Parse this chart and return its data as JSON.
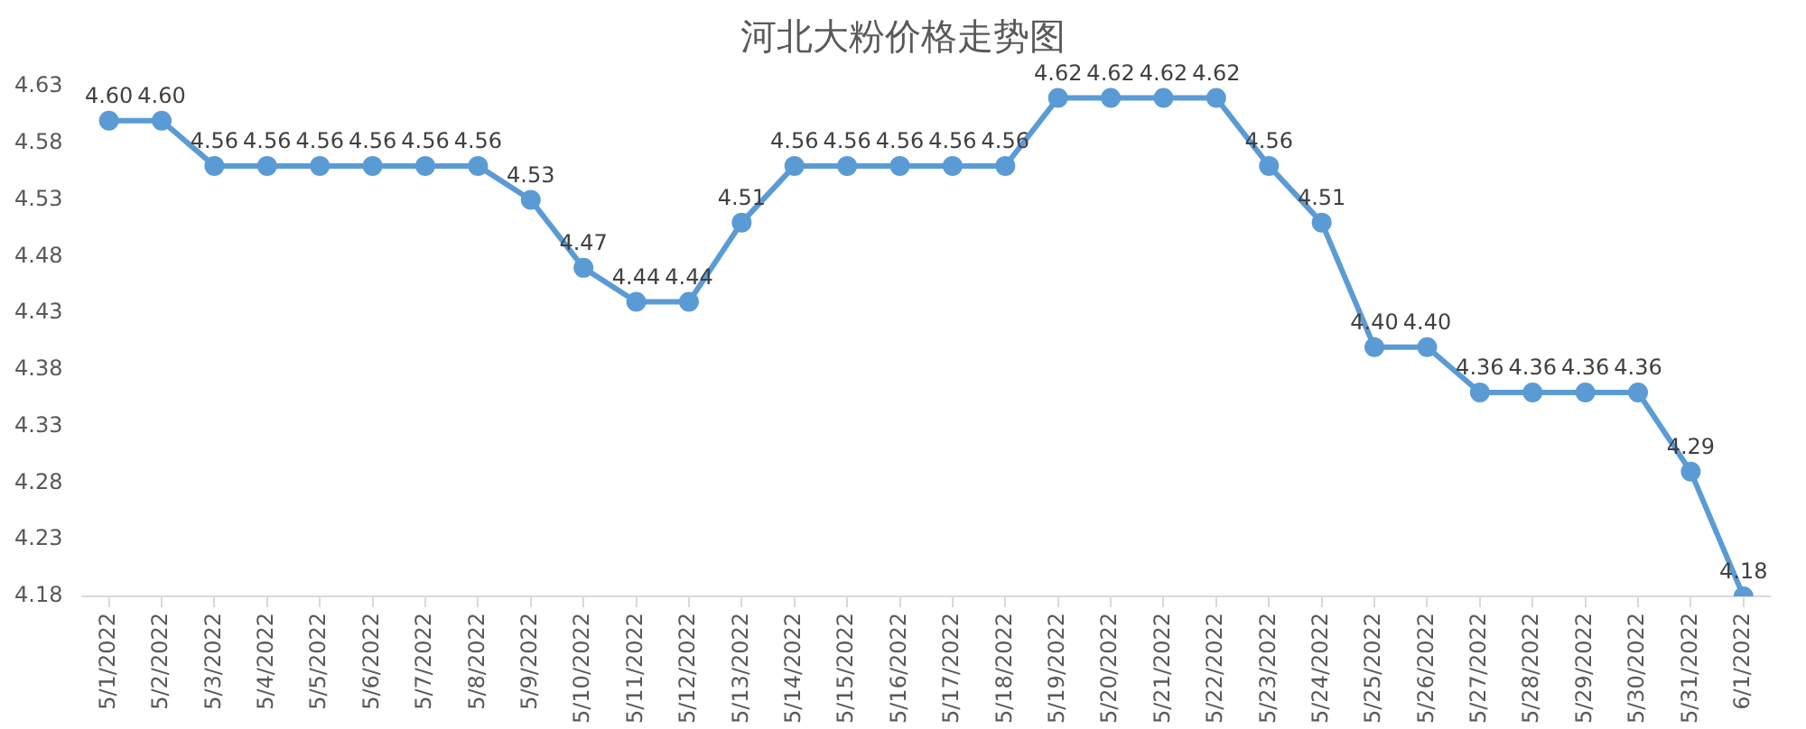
{
  "chart_data": {
    "type": "line",
    "title": "河北大粉价格走势图",
    "categories": [
      "5/1/2022",
      "5/2/2022",
      "5/3/2022",
      "5/4/2022",
      "5/5/2022",
      "5/6/2022",
      "5/7/2022",
      "5/8/2022",
      "5/9/2022",
      "5/10/2022",
      "5/11/2022",
      "5/12/2022",
      "5/13/2022",
      "5/14/2022",
      "5/15/2022",
      "5/16/2022",
      "5/17/2022",
      "5/18/2022",
      "5/19/2022",
      "5/20/2022",
      "5/21/2022",
      "5/22/2022",
      "5/23/2022",
      "5/24/2022",
      "5/25/2022",
      "5/26/2022",
      "5/27/2022",
      "5/28/2022",
      "5/29/2022",
      "5/30/2022",
      "5/31/2022",
      "6/1/2022"
    ],
    "series": [
      {
        "color": "#5b9bd5",
        "values": [
          4.6,
          4.6,
          4.56,
          4.56,
          4.56,
          4.56,
          4.56,
          4.56,
          4.53,
          4.47,
          4.44,
          4.44,
          4.51,
          4.56,
          4.56,
          4.56,
          4.56,
          4.56,
          4.62,
          4.62,
          4.62,
          4.62,
          4.56,
          4.51,
          4.4,
          4.4,
          4.36,
          4.36,
          4.36,
          4.36,
          4.29,
          4.18
        ],
        "value_labels": [
          "4.60",
          "4.60",
          "4.56",
          "4.56",
          "4.56",
          "4.56",
          "4.56",
          "4.56",
          "4.53",
          "4.47",
          "4.44",
          "4.44",
          "4.51",
          "4.56",
          "4.56",
          "4.56",
          "4.56",
          "4.56",
          "4.62",
          "4.62",
          "4.62",
          "4.62",
          "4.56",
          "4.51",
          "4.40",
          "4.40",
          "4.36",
          "4.36",
          "4.36",
          "4.36",
          "4.29",
          "4.18"
        ]
      }
    ],
    "ylim": [
      4.18,
      4.63
    ],
    "yticks": [
      4.18,
      4.23,
      4.28,
      4.33,
      4.38,
      4.43,
      4.48,
      4.53,
      4.58,
      4.63
    ],
    "marker": "circle",
    "line_style": "solid",
    "grid": false,
    "legend": false
  }
}
